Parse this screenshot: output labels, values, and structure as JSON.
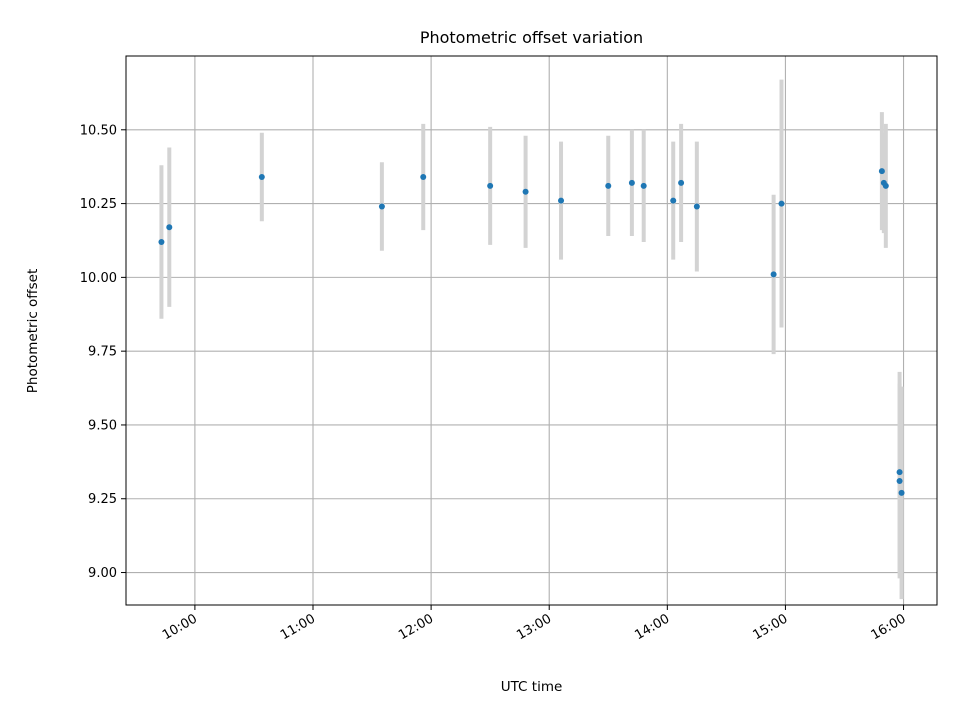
{
  "chart_data": {
    "type": "scatter",
    "title": "Photometric offset variation",
    "xlabel": "UTC time",
    "ylabel": "Photometric offset",
    "x_ticks": [
      "10:00",
      "11:00",
      "12:00",
      "13:00",
      "14:00",
      "15:00",
      "16:00"
    ],
    "y_ticks": [
      "9.00",
      "9.25",
      "9.50",
      "9.75",
      "10.00",
      "10.25",
      "10.50"
    ],
    "xlim": [
      "09:25",
      "16:17"
    ],
    "ylim": [
      8.89,
      10.75
    ],
    "grid": true,
    "colors": {
      "point": "#1f77b4",
      "errorbar": "#d3d3d3",
      "grid": "#b0b0b0"
    },
    "points": [
      {
        "x": "09:43",
        "y": 10.12,
        "err": 0.26
      },
      {
        "x": "09:47",
        "y": 10.17,
        "err": 0.27
      },
      {
        "x": "10:34",
        "y": 10.34,
        "err": 0.15
      },
      {
        "x": "11:35",
        "y": 10.24,
        "err": 0.15
      },
      {
        "x": "11:56",
        "y": 10.34,
        "err": 0.18
      },
      {
        "x": "12:30",
        "y": 10.31,
        "err": 0.2
      },
      {
        "x": "12:48",
        "y": 10.29,
        "err": 0.19
      },
      {
        "x": "13:06",
        "y": 10.26,
        "err": 0.2
      },
      {
        "x": "13:30",
        "y": 10.31,
        "err": 0.17
      },
      {
        "x": "13:42",
        "y": 10.32,
        "err": 0.18
      },
      {
        "x": "13:48",
        "y": 10.31,
        "err": 0.19
      },
      {
        "x": "14:03",
        "y": 10.26,
        "err": 0.2
      },
      {
        "x": "14:07",
        "y": 10.32,
        "err": 0.2
      },
      {
        "x": "14:15",
        "y": 10.24,
        "err": 0.22
      },
      {
        "x": "14:54",
        "y": 10.01,
        "err": 0.27
      },
      {
        "x": "14:58",
        "y": 10.25,
        "err": 0.42
      },
      {
        "x": "15:49",
        "y": 10.36,
        "err": 0.2
      },
      {
        "x": "15:50",
        "y": 10.32,
        "err": 0.17
      },
      {
        "x": "15:51",
        "y": 10.31,
        "err": 0.21
      },
      {
        "x": "15:58",
        "y": 9.34,
        "err": 0.34
      },
      {
        "x": "15:58",
        "y": 9.31,
        "err": 0.33
      },
      {
        "x": "15:59",
        "y": 9.27,
        "err": 0.36
      }
    ]
  }
}
